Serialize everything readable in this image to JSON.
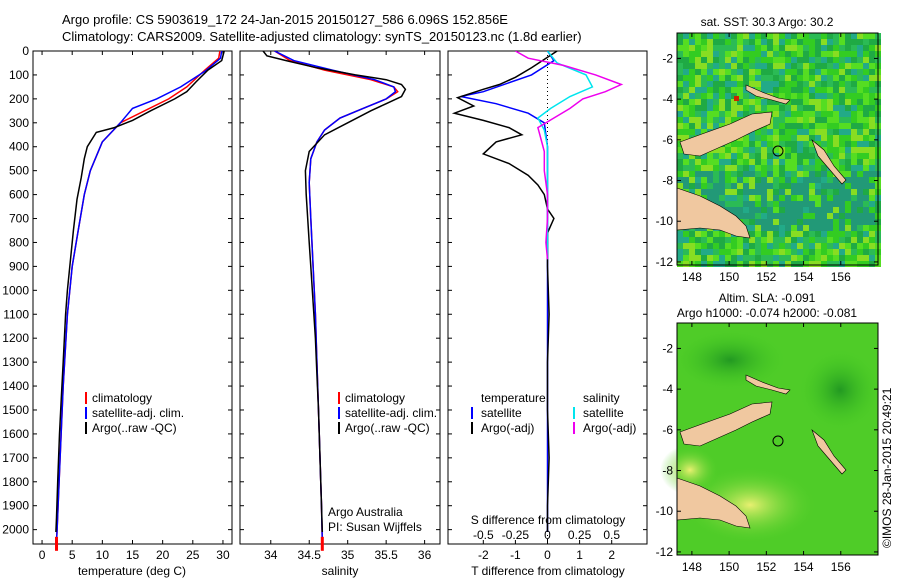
{
  "header": {
    "line1": "Argo profile: CS 5903619_172 24-Jan-2015 20150127_586 6.096S 152.856E",
    "line2": "Climatology: CARS2009. Satellite-adjusted climatology: synTS_20150123.nc (1.8d earlier)"
  },
  "colors": {
    "clim": "#ff0000",
    "sat": "#0000ff",
    "argo": "#000000",
    "sat_s": "#00e5ee",
    "argo_s": "#ee00ee",
    "land": "#f0c8a0",
    "ocean": "#33cc22"
  },
  "chart_data": [
    {
      "type": "line",
      "name": "temperature",
      "xlabel": "temperature (deg C)",
      "ylabel": "",
      "xlim": [
        -1.5,
        31.5
      ],
      "ylim": [
        2060,
        0
      ],
      "xticks": [
        0,
        5,
        10,
        15,
        20,
        25,
        30
      ],
      "yticks": [
        0,
        100,
        200,
        300,
        400,
        500,
        600,
        700,
        800,
        900,
        1000,
        1100,
        1200,
        1300,
        1400,
        1500,
        1600,
        1700,
        1800,
        1900,
        2000
      ],
      "legend": {
        "placement": "lower-center",
        "entries": [
          "climatology",
          "satellite-adj. clim.",
          "Argo(..raw -QC)"
        ]
      },
      "series": [
        {
          "name": "climatology",
          "color": "#ff0000",
          "points": [
            [
              29.5,
              0
            ],
            [
              29.3,
              30
            ],
            [
              27,
              80
            ],
            [
              24,
              150
            ],
            [
              21,
              200
            ],
            [
              17,
              250
            ],
            [
              13,
              300
            ],
            [
              10,
              380
            ],
            [
              8,
              500
            ],
            [
              7,
              600
            ],
            [
              6,
              750
            ],
            [
              5,
              900
            ],
            [
              4.2,
              1100
            ],
            [
              3.5,
              1400
            ],
            [
              3,
              1700
            ],
            [
              2.5,
              2000
            ],
            [
              2.4,
              2050
            ]
          ]
        },
        {
          "name": "satellite-adj. clim.",
          "color": "#0000ff",
          "points": [
            [
              29.8,
              0
            ],
            [
              29.6,
              30
            ],
            [
              27,
              85
            ],
            [
              23,
              150
            ],
            [
              19,
              200
            ],
            [
              15,
              240
            ],
            [
              13,
              300
            ],
            [
              10,
              380
            ],
            [
              8,
              500
            ],
            [
              7,
              600
            ],
            [
              6,
              750
            ],
            [
              5,
              900
            ],
            [
              4.2,
              1100
            ],
            [
              3.5,
              1400
            ],
            [
              3,
              1700
            ],
            [
              2.5,
              2000
            ],
            [
              2.4,
              2050
            ]
          ]
        },
        {
          "name": "Argo(..raw -QC)",
          "color": "#000000",
          "points": [
            [
              30.2,
              0
            ],
            [
              29.8,
              40
            ],
            [
              27.5,
              80
            ],
            [
              25.5,
              130
            ],
            [
              24,
              170
            ],
            [
              22,
              200
            ],
            [
              18,
              250
            ],
            [
              15,
              290
            ],
            [
              12,
              320
            ],
            [
              9,
              340
            ],
            [
              7.5,
              400
            ],
            [
              7,
              450
            ],
            [
              6.5,
              530
            ],
            [
              5.8,
              620
            ],
            [
              5.2,
              750
            ],
            [
              4.6,
              900
            ],
            [
              4.2,
              1000
            ],
            [
              3.9,
              1100
            ],
            [
              3.5,
              1300
            ],
            [
              3.2,
              1450
            ],
            [
              2.9,
              1600
            ],
            [
              2.6,
              1800
            ],
            [
              2.4,
              1950
            ],
            [
              2.3,
              2010
            ]
          ]
        }
      ]
    },
    {
      "type": "line",
      "name": "salinity",
      "xlabel": "salinity",
      "xlim": [
        33.6,
        36.2
      ],
      "ylim": [
        2060,
        0
      ],
      "xticks": [
        34,
        34.5,
        35,
        35.5,
        36
      ],
      "legend": {
        "placement": "lower-center",
        "entries": [
          "climatology",
          "satellite-adj. clim.",
          "Argo(..raw -QC)"
        ]
      },
      "annotation": {
        "line1": "Argo Australia",
        "line2": "PI: Susan Wijffels"
      },
      "series": [
        {
          "name": "climatology",
          "color": "#ff0000",
          "points": [
            [
              34.05,
              0
            ],
            [
              34.25,
              40
            ],
            [
              34.7,
              80
            ],
            [
              35.3,
              120
            ],
            [
              35.6,
              150
            ],
            [
              35.65,
              170
            ],
            [
              35.5,
              200
            ],
            [
              35.2,
              240
            ],
            [
              34.9,
              280
            ],
            [
              34.7,
              330
            ],
            [
              34.6,
              380
            ],
            [
              34.52,
              450
            ],
            [
              34.5,
              550
            ],
            [
              34.52,
              700
            ],
            [
              34.55,
              900
            ],
            [
              34.58,
              1100
            ],
            [
              34.6,
              1300
            ],
            [
              34.62,
              1500
            ],
            [
              34.64,
              1700
            ],
            [
              34.66,
              1900
            ],
            [
              34.67,
              2050
            ]
          ]
        },
        {
          "name": "satellite-adj. clim.",
          "color": "#0000ff",
          "points": [
            [
              34.05,
              0
            ],
            [
              34.3,
              40
            ],
            [
              34.8,
              80
            ],
            [
              35.35,
              120
            ],
            [
              35.6,
              150
            ],
            [
              35.62,
              170
            ],
            [
              35.5,
              200
            ],
            [
              35.2,
              240
            ],
            [
              34.9,
              280
            ],
            [
              34.7,
              330
            ],
            [
              34.6,
              380
            ],
            [
              34.52,
              450
            ],
            [
              34.5,
              550
            ],
            [
              34.52,
              700
            ],
            [
              34.55,
              900
            ],
            [
              34.58,
              1100
            ],
            [
              34.6,
              1300
            ],
            [
              34.62,
              1500
            ],
            [
              34.64,
              1700
            ],
            [
              34.66,
              1900
            ],
            [
              34.67,
              2050
            ]
          ]
        },
        {
          "name": "Argo(..raw -QC)",
          "color": "#000000",
          "points": [
            [
              33.9,
              0
            ],
            [
              33.95,
              20
            ],
            [
              34.2,
              40
            ],
            [
              34.6,
              70
            ],
            [
              35.1,
              100
            ],
            [
              35.5,
              120
            ],
            [
              35.7,
              140
            ],
            [
              35.75,
              160
            ],
            [
              35.7,
              190
            ],
            [
              35.5,
              220
            ],
            [
              35.3,
              250
            ],
            [
              35,
              300
            ],
            [
              34.7,
              350
            ],
            [
              34.5,
              420
            ],
            [
              34.45,
              500
            ],
            [
              34.46,
              600
            ],
            [
              34.48,
              700
            ],
            [
              34.5,
              800
            ],
            [
              34.52,
              900
            ],
            [
              34.55,
              1050
            ],
            [
              34.58,
              1200
            ],
            [
              34.6,
              1350
            ],
            [
              34.62,
              1500
            ],
            [
              34.64,
              1700
            ],
            [
              34.66,
              1900
            ],
            [
              34.67,
              2010
            ]
          ]
        }
      ]
    },
    {
      "type": "line",
      "name": "difference",
      "xlabel": "T difference from climatology",
      "xlabel_top": "S difference from climatology",
      "xlim": [
        -3.1,
        3.1
      ],
      "ylim": [
        2060,
        0
      ],
      "xticks_T": [
        -2,
        -1,
        0,
        1,
        2
      ],
      "xticks_S": [
        "-0.5",
        "-0.25",
        "0",
        "0.25",
        "0.5"
      ],
      "legend": {
        "placement": "lower-center",
        "headers": [
          "temperature",
          "salinity"
        ],
        "entries": [
          "satellite",
          "Argo(-adj)",
          "satellite",
          "Argo(-adj)"
        ]
      },
      "series": [
        {
          "name": "temperature satellite",
          "color": "#0000ff",
          "points": [
            [
              0,
              0
            ],
            [
              0.2,
              40
            ],
            [
              -0.5,
              100
            ],
            [
              -2,
              170
            ],
            [
              -2.7,
              190
            ],
            [
              -1.6,
              220
            ],
            [
              -0.6,
              260
            ],
            [
              -0.1,
              300
            ],
            [
              0,
              400
            ],
            [
              0,
              500
            ],
            [
              0,
              700
            ],
            [
              0,
              900
            ],
            [
              0,
              1100
            ],
            [
              0,
              1300
            ],
            [
              0,
              1500
            ],
            [
              0,
              1700
            ],
            [
              0,
              1900
            ],
            [
              0,
              2010
            ]
          ]
        },
        {
          "name": "temperature Argo(-adj)",
          "color": "#000000",
          "points": [
            [
              0.3,
              0
            ],
            [
              -0.5,
              70
            ],
            [
              -1,
              110
            ],
            [
              -1.5,
              140
            ],
            [
              -2,
              160
            ],
            [
              -2.8,
              195
            ],
            [
              -2.3,
              230
            ],
            [
              -2.9,
              260
            ],
            [
              -2,
              290
            ],
            [
              -1.2,
              320
            ],
            [
              -0.8,
              350
            ],
            [
              -1.6,
              380
            ],
            [
              -2,
              430
            ],
            [
              -1.2,
              470
            ],
            [
              -0.6,
              520
            ],
            [
              -0.3,
              560
            ],
            [
              -0.1,
              600
            ],
            [
              0,
              660
            ],
            [
              0.2,
              700
            ],
            [
              0,
              760
            ],
            [
              0,
              900
            ],
            [
              0.05,
              1100
            ],
            [
              0,
              1300
            ],
            [
              0,
              1500
            ],
            [
              0.05,
              1700
            ],
            [
              0,
              1900
            ],
            [
              0,
              2010
            ]
          ]
        },
        {
          "name": "salinity satellite",
          "color": "#00e5ee",
          "points": [
            [
              0,
              0
            ],
            [
              0.3,
              50
            ],
            [
              1.2,
              100
            ],
            [
              1.4,
              150
            ],
            [
              0.7,
              190
            ],
            [
              0.1,
              240
            ],
            [
              -0.3,
              280
            ],
            [
              -0.1,
              330
            ],
            [
              0,
              400
            ],
            [
              0,
              500
            ],
            [
              0,
              600
            ],
            [
              0,
              700
            ],
            [
              0,
              800
            ],
            [
              0,
              870
            ]
          ]
        },
        {
          "name": "salinity Argo(-adj)",
          "color": "#ee00ee",
          "points": [
            [
              -1,
              0
            ],
            [
              -0.6,
              30
            ],
            [
              0.5,
              60
            ],
            [
              1.5,
              100
            ],
            [
              2.3,
              140
            ],
            [
              1.8,
              170
            ],
            [
              1.1,
              200
            ],
            [
              0.7,
              240
            ],
            [
              0.2,
              280
            ],
            [
              -0.3,
              320
            ],
            [
              -0.2,
              370
            ],
            [
              -0.1,
              420
            ],
            [
              -0.1,
              500
            ],
            [
              0,
              600
            ],
            [
              0,
              700
            ],
            [
              -0.05,
              800
            ],
            [
              0,
              870
            ]
          ]
        }
      ]
    }
  ],
  "maps": {
    "top": {
      "title": "sat. SST: 30.3 Argo: 30.2",
      "lon_ticks": [
        "148",
        "150",
        "152",
        "154",
        "156"
      ],
      "lat_ticks": [
        "-2",
        "-4",
        "-6",
        "-8",
        "-10",
        "-12"
      ]
    },
    "bottom": {
      "title1": "Altim. SLA: -0.091",
      "title2": "Argo h1000: -0.074 h2000: -0.081",
      "lon_ticks": [
        "148",
        "150",
        "152",
        "154",
        "156"
      ],
      "lat_ticks": [
        "-2",
        "-4",
        "-6",
        "-8",
        "-10",
        "-12"
      ]
    }
  },
  "stamp": "©IMOS 28-Jan-2015 20:49:21"
}
